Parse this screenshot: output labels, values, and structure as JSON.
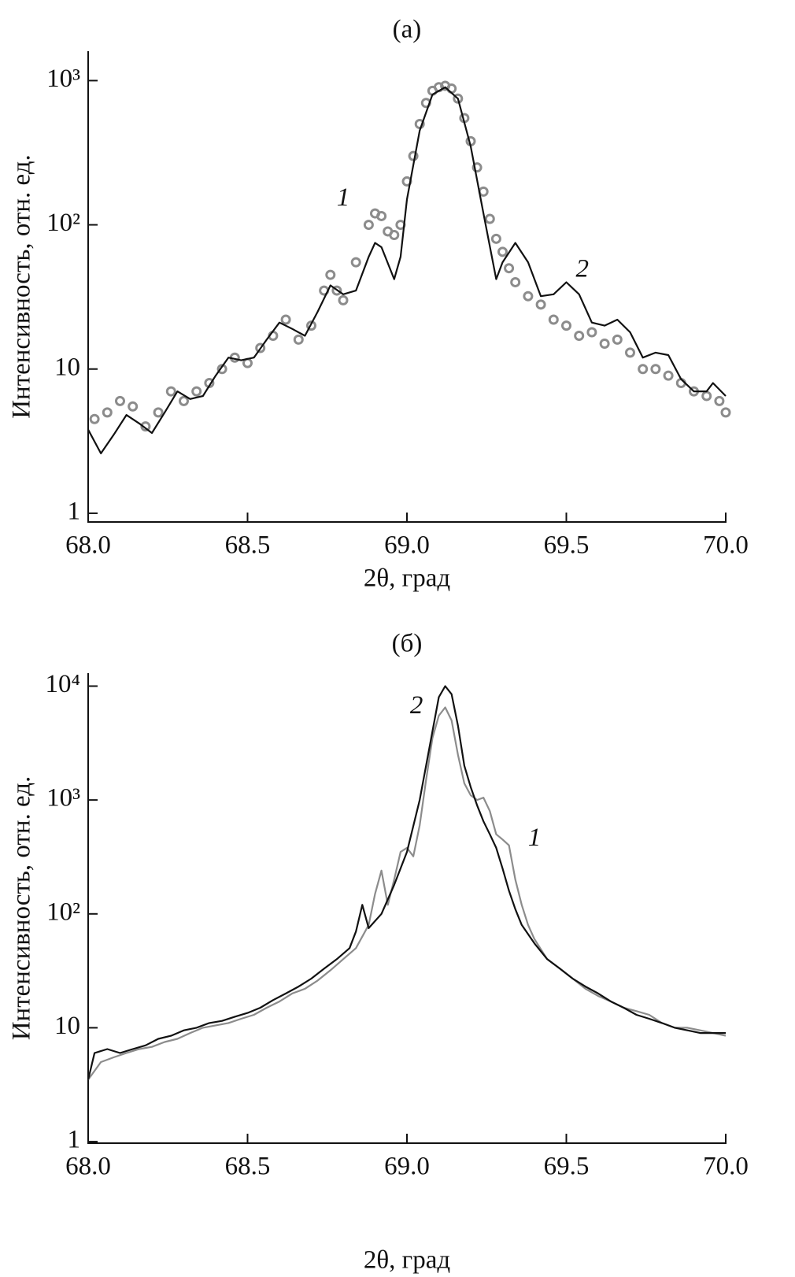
{
  "chart_data": [
    {
      "type": "line",
      "title": "(а)",
      "xlabel": "2θ, град",
      "ylabel": "Интенсивность, отн. ед.",
      "ylog": true,
      "xlim": [
        68,
        70
      ],
      "ylim": [
        0.87,
        1600
      ],
      "xticks": [
        {
          "value": 68,
          "label": "68.0"
        },
        {
          "value": 68.5,
          "label": "68.5"
        },
        {
          "value": 69,
          "label": "69.0"
        },
        {
          "value": 69.5,
          "label": "69.5"
        },
        {
          "value": 70,
          "label": "70.0"
        }
      ],
      "yticks": [
        1,
        10,
        {
          "value": 100,
          "label": "10²"
        },
        {
          "value": 1000,
          "label": "10³"
        }
      ],
      "series": [
        {
          "style": "markers",
          "color": "#8c8c8c",
          "x": [
            68.02,
            68.06,
            68.1,
            68.14,
            68.18,
            68.22,
            68.26,
            68.3,
            68.34,
            68.38,
            68.42,
            68.46,
            68.5,
            68.54,
            68.58,
            68.62,
            68.66,
            68.7,
            68.74,
            68.76,
            68.78,
            68.8,
            68.84,
            68.88,
            68.9,
            68.92,
            68.94,
            68.96,
            68.98,
            69,
            69.02,
            69.04,
            69.06,
            69.08,
            69.1,
            69.12,
            69.14,
            69.16,
            69.18,
            69.2,
            69.22,
            69.24,
            69.26,
            69.28,
            69.3,
            69.32,
            69.34,
            69.38,
            69.42,
            69.46,
            69.5,
            69.54,
            69.58,
            69.62,
            69.66,
            69.7,
            69.74,
            69.78,
            69.82,
            69.86,
            69.9,
            69.94,
            69.98,
            70
          ],
          "values": [
            4.5,
            5,
            6,
            5.5,
            4,
            5,
            7,
            6,
            7,
            8,
            10,
            12,
            11,
            14,
            17,
            22,
            16,
            20,
            35,
            45,
            35,
            30,
            55,
            100,
            120,
            115,
            90,
            85,
            100,
            200,
            300,
            500,
            700,
            850,
            900,
            920,
            880,
            750,
            550,
            380,
            250,
            170,
            110,
            80,
            65,
            50,
            40,
            32,
            28,
            22,
            20,
            17,
            18,
            15,
            16,
            13,
            10,
            10,
            9,
            8,
            7,
            6.5,
            6,
            5
          ]
        },
        {
          "style": "line",
          "color": "#111111",
          "x": [
            68,
            68.04,
            68.08,
            68.12,
            68.16,
            68.2,
            68.24,
            68.28,
            68.32,
            68.36,
            68.4,
            68.44,
            68.48,
            68.52,
            68.56,
            68.6,
            68.64,
            68.68,
            68.72,
            68.76,
            68.8,
            68.84,
            68.88,
            68.9,
            68.92,
            68.96,
            68.98,
            69,
            69.04,
            69.08,
            69.12,
            69.16,
            69.2,
            69.24,
            69.28,
            69.3,
            69.34,
            69.38,
            69.42,
            69.46,
            69.5,
            69.54,
            69.58,
            69.62,
            69.66,
            69.7,
            69.74,
            69.78,
            69.82,
            69.86,
            69.9,
            69.94,
            69.96,
            70
          ],
          "values": [
            3.8,
            2.6,
            3.5,
            4.8,
            4.2,
            3.6,
            5,
            7,
            6.2,
            6.5,
            9,
            12,
            11.5,
            12,
            16,
            21,
            19,
            17,
            25,
            38,
            33,
            35,
            60,
            75,
            70,
            42,
            60,
            150,
            450,
            800,
            900,
            750,
            350,
            120,
            42,
            55,
            75,
            55,
            32,
            33,
            40,
            33,
            21,
            20,
            22,
            18,
            12,
            13,
            12.5,
            8.5,
            7,
            7,
            8,
            6.5
          ]
        }
      ],
      "annotations": [
        {
          "text": "1",
          "x": 68.8,
          "y": 150
        },
        {
          "text": "2",
          "x": 69.55,
          "y": 48
        }
      ]
    },
    {
      "type": "line",
      "title": "(б)",
      "xlabel": "2θ, град",
      "ylabel": "Интенсивность, отн. ед.",
      "ylog": true,
      "xlim": [
        68,
        70
      ],
      "ylim": [
        0.97,
        13000
      ],
      "xticks": [
        {
          "value": 68,
          "label": "68.0"
        },
        {
          "value": 68.5,
          "label": "68.5"
        },
        {
          "value": 69,
          "label": "69.0"
        },
        {
          "value": 69.5,
          "label": "69.5"
        },
        {
          "value": 70,
          "label": "70.0"
        }
      ],
      "yticks": [
        1,
        10,
        {
          "value": 100,
          "label": "10²"
        },
        {
          "value": 1000,
          "label": "10³"
        },
        {
          "value": 10000,
          "label": "10⁴"
        }
      ],
      "series": [
        {
          "style": "line",
          "color": "#8c8c8c",
          "x": [
            68,
            68.04,
            68.08,
            68.12,
            68.16,
            68.2,
            68.24,
            68.28,
            68.32,
            68.36,
            68.4,
            68.44,
            68.48,
            68.52,
            68.56,
            68.6,
            68.64,
            68.68,
            68.72,
            68.76,
            68.8,
            68.84,
            68.88,
            68.9,
            68.92,
            68.94,
            68.96,
            68.98,
            69,
            69.02,
            69.04,
            69.06,
            69.08,
            69.1,
            69.12,
            69.14,
            69.16,
            69.18,
            69.2,
            69.22,
            69.24,
            69.26,
            69.28,
            69.3,
            69.32,
            69.34,
            69.36,
            69.38,
            69.4,
            69.44,
            69.48,
            69.52,
            69.56,
            69.6,
            69.64,
            69.68,
            69.72,
            69.76,
            69.8,
            69.84,
            69.88,
            69.92,
            69.96,
            70
          ],
          "values": [
            3.5,
            5,
            5.5,
            6,
            6.5,
            6.8,
            7.5,
            8,
            9,
            10,
            10.5,
            11,
            12,
            13,
            15,
            17,
            20,
            22,
            26,
            32,
            40,
            50,
            80,
            150,
            240,
            120,
            200,
            350,
            380,
            320,
            600,
            1500,
            3500,
            5500,
            6500,
            5000,
            2500,
            1400,
            1100,
            1000,
            1050,
            800,
            500,
            450,
            400,
            200,
            120,
            80,
            60,
            40,
            33,
            27,
            22,
            19,
            17,
            15,
            14,
            13,
            11,
            10,
            10,
            9.5,
            9,
            8.5
          ]
        },
        {
          "style": "line",
          "color": "#111111",
          "x": [
            68,
            68.02,
            68.06,
            68.1,
            68.14,
            68.18,
            68.22,
            68.26,
            68.3,
            68.34,
            68.38,
            68.42,
            68.46,
            68.5,
            68.54,
            68.58,
            68.62,
            68.66,
            68.7,
            68.74,
            68.78,
            68.82,
            68.84,
            68.86,
            68.88,
            68.92,
            68.96,
            69,
            69.04,
            69.08,
            69.1,
            69.12,
            69.14,
            69.16,
            69.18,
            69.2,
            69.22,
            69.24,
            69.26,
            69.28,
            69.3,
            69.32,
            69.34,
            69.36,
            69.4,
            69.44,
            69.48,
            69.52,
            69.56,
            69.6,
            69.64,
            69.68,
            69.72,
            69.76,
            69.8,
            69.84,
            69.88,
            69.92,
            69.96,
            70
          ],
          "values": [
            3.5,
            6,
            6.5,
            6,
            6.5,
            7,
            8,
            8.5,
            9.5,
            10,
            11,
            11.5,
            12.5,
            13.5,
            15,
            17.5,
            20,
            23,
            27,
            33,
            40,
            50,
            70,
            120,
            75,
            100,
            180,
            350,
            1000,
            4000,
            8000,
            10000,
            8500,
            4500,
            2000,
            1300,
            900,
            650,
            500,
            380,
            250,
            160,
            110,
            80,
            55,
            40,
            33,
            27,
            23,
            20,
            17,
            15,
            13,
            12,
            11,
            10,
            9.5,
            9,
            9,
            9
          ]
        }
      ],
      "annotations": [
        {
          "text": "1",
          "x": 69.4,
          "y": 450
        },
        {
          "text": "2",
          "x": 69.03,
          "y": 6500
        }
      ]
    }
  ]
}
